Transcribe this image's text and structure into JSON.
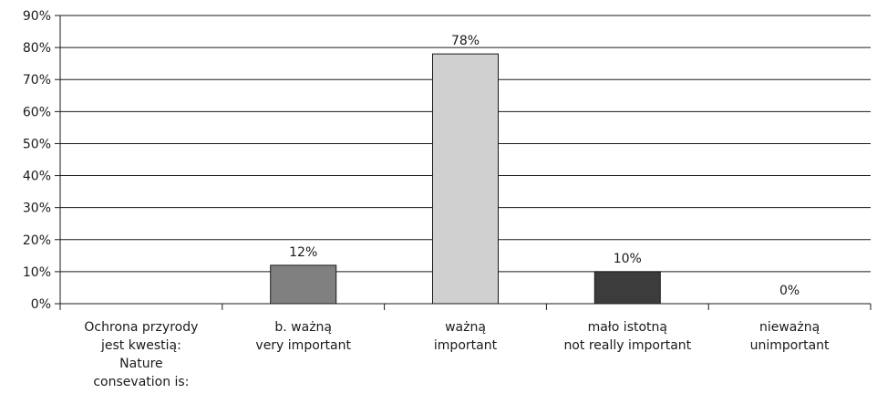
{
  "chart_data": {
    "type": "bar",
    "categories": [
      [
        "Ochrona przyrody",
        "jest kwestią:",
        "Nature",
        "consevation is:"
      ],
      [
        "b. ważną",
        "very important"
      ],
      [
        "ważną",
        "important"
      ],
      [
        "mało istotną",
        "not really important"
      ],
      [
        "nieważną",
        "unimportant"
      ]
    ],
    "values": [
      null,
      12,
      78,
      10,
      0
    ],
    "data_labels": [
      "",
      "12%",
      "78%",
      "10%",
      "0%"
    ],
    "bar_colors": [
      "#ffffff",
      "#808080",
      "#d0d0d0",
      "#3c3c3c",
      "#ffffff"
    ],
    "ylim": [
      0,
      90
    ],
    "yticks": [
      0,
      10,
      20,
      30,
      40,
      50,
      60,
      70,
      80,
      90
    ],
    "ytick_labels": [
      "0%",
      "10%",
      "20%",
      "30%",
      "40%",
      "50%",
      "60%",
      "70%",
      "80%",
      "90%"
    ],
    "grid": true,
    "title": "",
    "xlabel": "",
    "ylabel": ""
  }
}
